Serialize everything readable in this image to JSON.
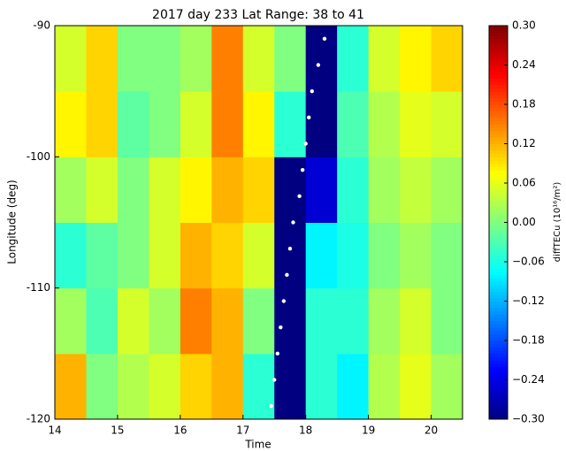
{
  "chart_data": {
    "type": "heatmap",
    "title": "2017 day 233  Lat Range: 38 to 41",
    "x_label": "Time",
    "y_label": "Longitude (deg)",
    "colorbar_label": "diffTECu (10¹⁶/m²)",
    "colormap": "jet",
    "xbins": [
      14,
      14.5,
      15,
      15.5,
      16,
      16.5,
      17,
      17.5,
      18,
      18.5,
      19,
      19.5,
      20,
      20.5
    ],
    "ybins": [
      -120,
      -115,
      -110,
      -105,
      -100,
      -95,
      -90
    ],
    "z": [
      [
        0.12,
        0.0,
        0.03,
        0.05,
        0.1,
        0.12,
        -0.05,
        -0.3,
        -0.05,
        -0.08,
        0.03,
        0.06,
        0.02
      ],
      [
        0.02,
        -0.03,
        0.05,
        0.02,
        0.15,
        0.12,
        0.0,
        -0.3,
        -0.05,
        -0.05,
        0.02,
        0.05,
        0.0
      ],
      [
        -0.05,
        -0.02,
        0.0,
        0.05,
        0.12,
        0.1,
        0.05,
        -0.3,
        -0.08,
        -0.06,
        0.0,
        0.02,
        0.0
      ],
      [
        0.02,
        0.05,
        0.0,
        0.05,
        0.08,
        0.12,
        0.1,
        -0.3,
        -0.25,
        -0.05,
        0.02,
        0.04,
        0.02
      ],
      [
        0.08,
        0.1,
        -0.02,
        0.0,
        0.05,
        0.15,
        0.08,
        -0.05,
        -0.3,
        -0.03,
        0.03,
        0.06,
        0.05
      ],
      [
        0.05,
        0.1,
        0.0,
        0.0,
        0.02,
        0.15,
        0.05,
        0.0,
        -0.3,
        -0.05,
        0.05,
        0.08,
        0.1
      ]
    ],
    "path": {
      "color": "#ffffff",
      "x": [
        17.45,
        17.5,
        17.55,
        17.6,
        17.65,
        17.7,
        17.75,
        17.8,
        17.9,
        17.95,
        18.0,
        18.05,
        18.1,
        18.2,
        18.3
      ],
      "y": [
        -119,
        -117,
        -115,
        -113,
        -111,
        -109,
        -107,
        -105,
        -103,
        -101,
        -99,
        -97,
        -95,
        -93,
        -91
      ]
    },
    "xlim": [
      14,
      20.5
    ],
    "xticks": [
      14,
      15,
      16,
      17,
      18,
      19,
      20
    ],
    "ylim": [
      -120,
      -90
    ],
    "yticks": [
      -120,
      -110,
      -100,
      -90
    ],
    "clim": [
      -0.3,
      0.3
    ],
    "cticks": [
      {
        "value": -0.3,
        "label": "−0.30"
      },
      {
        "value": -0.24,
        "label": "−0.24"
      },
      {
        "value": -0.18,
        "label": "−0.18"
      },
      {
        "value": -0.12,
        "label": "−0.12"
      },
      {
        "value": -0.06,
        "label": "−0.06"
      },
      {
        "value": 0,
        "label": "0.00"
      },
      {
        "value": 0.06,
        "label": "0.06"
      },
      {
        "value": 0.12,
        "label": "0.12"
      },
      {
        "value": 0.18,
        "label": "0.18"
      },
      {
        "value": 0.24,
        "label": "0.24"
      },
      {
        "value": 0.3,
        "label": "0.30"
      }
    ]
  }
}
